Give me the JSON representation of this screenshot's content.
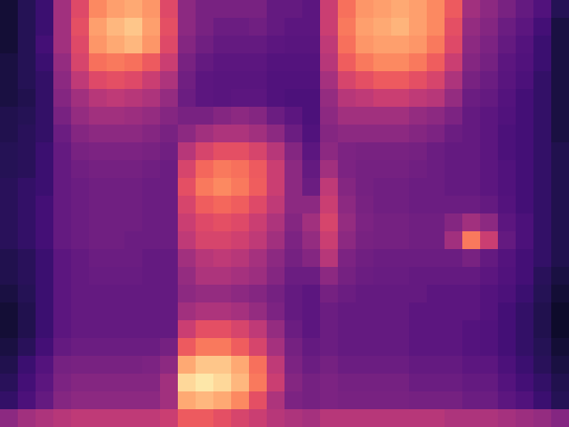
{
  "chart_data": {
    "type": "heatmap",
    "color": "magma",
    "tick_labels": false,
    "zlim": [
      0,
      100
    ],
    "values": [
      [
        10,
        15,
        20,
        45,
        60,
        75,
        80,
        82,
        78,
        60,
        40,
        35,
        35,
        35,
        35,
        30,
        30,
        28,
        55,
        70,
        78,
        80,
        82,
        80,
        75,
        65,
        45,
        40,
        35,
        30,
        25,
        15
      ],
      [
        10,
        15,
        20,
        45,
        62,
        80,
        85,
        88,
        80,
        62,
        40,
        35,
        32,
        32,
        33,
        30,
        28,
        28,
        55,
        72,
        80,
        82,
        84,
        80,
        75,
        62,
        42,
        38,
        32,
        28,
        22,
        12
      ],
      [
        10,
        15,
        22,
        45,
        60,
        78,
        82,
        85,
        78,
        60,
        38,
        33,
        30,
        30,
        30,
        28,
        27,
        27,
        52,
        70,
        78,
        80,
        80,
        78,
        72,
        60,
        40,
        36,
        30,
        26,
        20,
        12
      ],
      [
        12,
        15,
        20,
        42,
        58,
        70,
        72,
        70,
        65,
        55,
        35,
        30,
        28,
        28,
        28,
        26,
        26,
        26,
        50,
        66,
        72,
        75,
        75,
        72,
        66,
        55,
        38,
        34,
        28,
        25,
        20,
        12
      ],
      [
        12,
        15,
        18,
        40,
        52,
        60,
        62,
        60,
        55,
        48,
        33,
        28,
        27,
        27,
        27,
        25,
        25,
        25,
        46,
        58,
        62,
        65,
        65,
        62,
        58,
        48,
        35,
        32,
        27,
        24,
        18,
        12
      ],
      [
        12,
        14,
        18,
        38,
        45,
        50,
        52,
        50,
        48,
        42,
        32,
        28,
        27,
        28,
        28,
        25,
        24,
        24,
        42,
        50,
        52,
        55,
        55,
        52,
        50,
        42,
        32,
        30,
        26,
        22,
        18,
        12
      ],
      [
        14,
        15,
        18,
        35,
        42,
        45,
        45,
        44,
        42,
        38,
        35,
        35,
        38,
        40,
        38,
        32,
        28,
        24,
        40,
        45,
        45,
        45,
        45,
        42,
        40,
        36,
        30,
        28,
        25,
        22,
        18,
        12
      ],
      [
        14,
        16,
        18,
        32,
        38,
        40,
        40,
        40,
        38,
        35,
        40,
        45,
        48,
        48,
        45,
        40,
        32,
        25,
        38,
        40,
        40,
        40,
        40,
        38,
        36,
        32,
        30,
        28,
        24,
        22,
        18,
        12
      ],
      [
        15,
        16,
        20,
        30,
        35,
        36,
        36,
        36,
        35,
        33,
        50,
        58,
        62,
        62,
        58,
        50,
        38,
        28,
        40,
        36,
        35,
        35,
        35,
        34,
        32,
        30,
        30,
        28,
        24,
        22,
        18,
        14
      ],
      [
        15,
        16,
        20,
        30,
        33,
        34,
        34,
        34,
        33,
        32,
        58,
        68,
        72,
        70,
        65,
        55,
        40,
        30,
        45,
        36,
        34,
        34,
        34,
        33,
        32,
        30,
        30,
        28,
        25,
        22,
        18,
        14
      ],
      [
        16,
        18,
        20,
        30,
        32,
        33,
        33,
        33,
        32,
        32,
        62,
        72,
        75,
        72,
        66,
        55,
        40,
        32,
        52,
        38,
        34,
        33,
        33,
        32,
        32,
        30,
        30,
        28,
        25,
        22,
        18,
        14
      ],
      [
        16,
        18,
        22,
        30,
        32,
        33,
        33,
        33,
        32,
        32,
        58,
        66,
        68,
        66,
        60,
        52,
        40,
        40,
        55,
        40,
        35,
        33,
        33,
        32,
        32,
        32,
        32,
        30,
        26,
        22,
        18,
        14
      ],
      [
        16,
        18,
        22,
        30,
        32,
        33,
        33,
        33,
        32,
        32,
        55,
        60,
        62,
        60,
        55,
        48,
        38,
        45,
        58,
        42,
        36,
        34,
        34,
        33,
        33,
        38,
        45,
        40,
        28,
        24,
        18,
        14
      ],
      [
        16,
        18,
        22,
        30,
        32,
        33,
        33,
        32,
        32,
        32,
        52,
        58,
        58,
        56,
        52,
        45,
        36,
        42,
        55,
        40,
        35,
        34,
        34,
        33,
        33,
        45,
        72,
        55,
        30,
        24,
        18,
        14
      ],
      [
        14,
        16,
        20,
        28,
        30,
        32,
        32,
        32,
        30,
        30,
        45,
        50,
        52,
        50,
        46,
        40,
        34,
        38,
        50,
        36,
        33,
        32,
        32,
        32,
        32,
        32,
        35,
        30,
        26,
        22,
        18,
        14
      ],
      [
        14,
        16,
        20,
        28,
        30,
        31,
        31,
        31,
        30,
        30,
        42,
        48,
        48,
        46,
        44,
        38,
        32,
        32,
        40,
        34,
        32,
        31,
        31,
        30,
        30,
        30,
        30,
        28,
        25,
        22,
        16,
        12
      ],
      [
        12,
        15,
        20,
        28,
        30,
        30,
        30,
        30,
        30,
        30,
        40,
        42,
        42,
        40,
        38,
        34,
        30,
        28,
        34,
        32,
        30,
        30,
        30,
        30,
        28,
        28,
        28,
        26,
        24,
        20,
        15,
        10
      ],
      [
        10,
        14,
        20,
        28,
        30,
        30,
        30,
        30,
        30,
        30,
        45,
        48,
        48,
        46,
        42,
        36,
        30,
        28,
        32,
        30,
        30,
        30,
        30,
        28,
        28,
        28,
        28,
        26,
        22,
        18,
        14,
        8
      ],
      [
        10,
        14,
        20,
        28,
        30,
        30,
        30,
        30,
        30,
        30,
        55,
        62,
        62,
        58,
        52,
        42,
        32,
        28,
        32,
        30,
        30,
        30,
        30,
        28,
        28,
        28,
        26,
        25,
        22,
        18,
        14,
        8
      ],
      [
        12,
        16,
        22,
        30,
        32,
        32,
        32,
        32,
        32,
        34,
        65,
        72,
        72,
        66,
        58,
        46,
        34,
        30,
        32,
        30,
        30,
        30,
        30,
        28,
        28,
        28,
        26,
        25,
        22,
        18,
        15,
        10
      ],
      [
        14,
        20,
        26,
        34,
        35,
        35,
        35,
        35,
        36,
        40,
        82,
        88,
        88,
        82,
        70,
        52,
        36,
        32,
        34,
        32,
        32,
        32,
        32,
        30,
        30,
        30,
        28,
        28,
        24,
        20,
        16,
        12
      ],
      [
        16,
        22,
        28,
        36,
        38,
        38,
        38,
        38,
        38,
        45,
        92,
        95,
        92,
        85,
        72,
        55,
        38,
        34,
        36,
        34,
        34,
        34,
        34,
        32,
        32,
        32,
        30,
        30,
        26,
        22,
        18,
        14
      ],
      [
        18,
        24,
        30,
        38,
        40,
        40,
        40,
        40,
        40,
        45,
        82,
        85,
        82,
        75,
        62,
        48,
        36,
        34,
        36,
        35,
        35,
        35,
        35,
        34,
        34,
        34,
        32,
        32,
        28,
        25,
        20,
        15
      ],
      [
        40,
        45,
        48,
        50,
        52,
        52,
        52,
        52,
        52,
        55,
        65,
        65,
        62,
        58,
        55,
        50,
        48,
        46,
        50,
        50,
        50,
        50,
        50,
        50,
        50,
        48,
        48,
        48,
        46,
        44,
        42,
        38
      ]
    ]
  }
}
